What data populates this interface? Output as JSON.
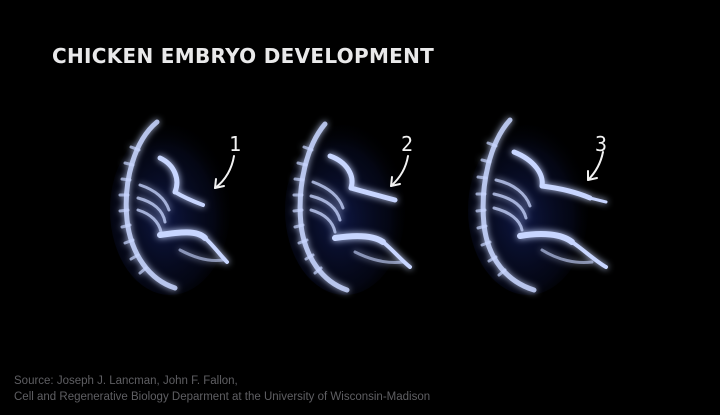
{
  "slide": {
    "title": "CHICKEN EMBRYO DEVELOPMENT",
    "labels": [
      "1",
      "2",
      "3"
    ],
    "source_line_1": "Source: Joseph J. Lancman, John F. Fallon,",
    "source_line_2": "Cell and Regenerative Biology Deparment at the University of Wisconsin-Madison"
  },
  "colors": {
    "background": "#000000",
    "title": "#e9e9ea",
    "bone": "#c8d6ff",
    "glow": "#3a55c8",
    "annotation": "#f2f2f2",
    "source": "#5f5f63"
  },
  "icons": {
    "figures": "chicken-embryo-skeleton-image",
    "pointers": "hand-drawn-arrow-icon"
  }
}
